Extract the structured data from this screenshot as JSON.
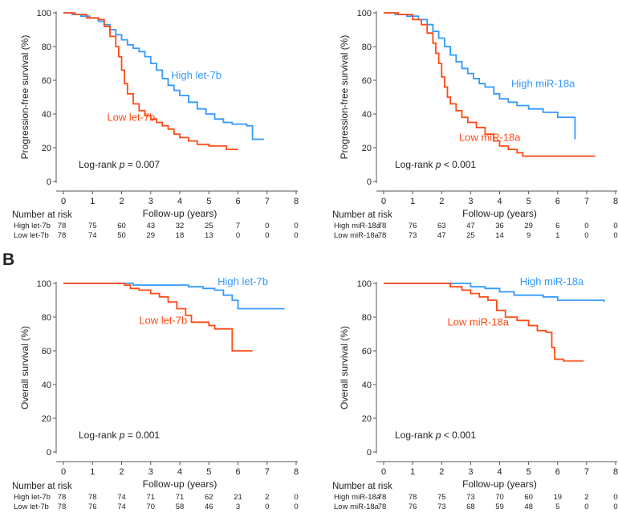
{
  "panel_label": "B",
  "colors": {
    "high": "#3399ff",
    "low": "#ff4a14",
    "axis": "#555555",
    "text": "#222222"
  },
  "chart_data": [
    {
      "type": "line",
      "ylabel": "Progression-free survival (%)",
      "xlabel": "Follow-up (years)",
      "xlim": [
        0,
        8
      ],
      "ylim": [
        0,
        100
      ],
      "xticks": [
        0,
        1,
        2,
        3,
        4,
        5,
        6,
        7,
        8
      ],
      "yticks": [
        0,
        20,
        40,
        60,
        80,
        100
      ],
      "grid": false,
      "annotation": {
        "prefix": "Log-rank ",
        "p": "p",
        "suffix": " = 0.007"
      },
      "risk_table": {
        "title": "Number at risk",
        "rows": [
          {
            "label": "High let-7b",
            "values": [
              78,
              75,
              60,
              43,
              32,
              25,
              7,
              0,
              0
            ]
          },
          {
            "label": "Low let-7b",
            "values": [
              78,
              74,
              50,
              29,
              18,
              13,
              0,
              0,
              0
            ]
          }
        ]
      },
      "series": [
        {
          "name": "High let-7b",
          "label_at": [
            3.7,
            61
          ],
          "color_key": "high",
          "points": [
            [
              0,
              100
            ],
            [
              0.3,
              99
            ],
            [
              0.6,
              98
            ],
            [
              0.9,
              97
            ],
            [
              1.2,
              95
            ],
            [
              1.4,
              93
            ],
            [
              1.6,
              90
            ],
            [
              1.8,
              87
            ],
            [
              2.0,
              84
            ],
            [
              2.2,
              81
            ],
            [
              2.4,
              79
            ],
            [
              2.6,
              77
            ],
            [
              2.8,
              74
            ],
            [
              3.0,
              70
            ],
            [
              3.2,
              66
            ],
            [
              3.4,
              61
            ],
            [
              3.6,
              57
            ],
            [
              3.8,
              54
            ],
            [
              4.0,
              51
            ],
            [
              4.3,
              47
            ],
            [
              4.6,
              43
            ],
            [
              4.9,
              40
            ],
            [
              5.2,
              37
            ],
            [
              5.5,
              35
            ],
            [
              5.8,
              34
            ],
            [
              6.3,
              33
            ],
            [
              6.5,
              25
            ],
            [
              6.9,
              25
            ]
          ]
        },
        {
          "name": "Low let-7b",
          "label_at": [
            1.5,
            36
          ],
          "color_key": "low",
          "points": [
            [
              0,
              100
            ],
            [
              0.4,
              99
            ],
            [
              0.8,
              97
            ],
            [
              1.2,
              96
            ],
            [
              1.4,
              92
            ],
            [
              1.6,
              86
            ],
            [
              1.8,
              80
            ],
            [
              1.9,
              74
            ],
            [
              2.0,
              66
            ],
            [
              2.1,
              58
            ],
            [
              2.2,
              52
            ],
            [
              2.4,
              46
            ],
            [
              2.6,
              42
            ],
            [
              2.8,
              39
            ],
            [
              3.0,
              37
            ],
            [
              3.2,
              35
            ],
            [
              3.4,
              33
            ],
            [
              3.6,
              31
            ],
            [
              3.8,
              28
            ],
            [
              4.0,
              26
            ],
            [
              4.3,
              24
            ],
            [
              4.6,
              22
            ],
            [
              5.0,
              21
            ],
            [
              5.6,
              19
            ],
            [
              6.0,
              19
            ]
          ]
        }
      ]
    },
    {
      "type": "line",
      "ylabel": "Progression-free survival (%)",
      "xlabel": "Follow-up (years)",
      "xlim": [
        0,
        8
      ],
      "ylim": [
        0,
        100
      ],
      "xticks": [
        0,
        1,
        2,
        3,
        4,
        5,
        6,
        7,
        8
      ],
      "yticks": [
        0,
        20,
        40,
        60,
        80,
        100
      ],
      "grid": false,
      "annotation": {
        "prefix": "Log-rank ",
        "p": "p",
        "suffix": " < 0.001"
      },
      "risk_table": {
        "title": "Number at risk",
        "rows": [
          {
            "label": "High miR-18a",
            "values": [
              78,
              76,
              63,
              47,
              36,
              29,
              6,
              0,
              0
            ]
          },
          {
            "label": "Low miR-18a",
            "values": [
              78,
              73,
              47,
              25,
              14,
              9,
              1,
              0,
              0
            ]
          }
        ]
      },
      "series": [
        {
          "name": "High miR-18a",
          "label_at": [
            4.4,
            56
          ],
          "color_key": "high",
          "points": [
            [
              0,
              100
            ],
            [
              0.4,
              99
            ],
            [
              0.8,
              98
            ],
            [
              1.2,
              96
            ],
            [
              1.5,
              93
            ],
            [
              1.7,
              89
            ],
            [
              1.9,
              85
            ],
            [
              2.1,
              80
            ],
            [
              2.3,
              75
            ],
            [
              2.5,
              71
            ],
            [
              2.7,
              67
            ],
            [
              2.9,
              64
            ],
            [
              3.1,
              61
            ],
            [
              3.3,
              58
            ],
            [
              3.5,
              56
            ],
            [
              3.8,
              52
            ],
            [
              4.0,
              49
            ],
            [
              4.3,
              47
            ],
            [
              4.6,
              45
            ],
            [
              5.0,
              43
            ],
            [
              5.5,
              41
            ],
            [
              6.0,
              38
            ],
            [
              6.5,
              38
            ],
            [
              6.6,
              25
            ]
          ]
        },
        {
          "name": "Low miR-18a",
          "label_at": [
            2.6,
            24
          ],
          "color_key": "low",
          "points": [
            [
              0,
              100
            ],
            [
              0.5,
              99
            ],
            [
              1.0,
              96
            ],
            [
              1.3,
              93
            ],
            [
              1.5,
              88
            ],
            [
              1.7,
              82
            ],
            [
              1.8,
              76
            ],
            [
              1.9,
              70
            ],
            [
              2.0,
              62
            ],
            [
              2.1,
              56
            ],
            [
              2.2,
              50
            ],
            [
              2.3,
              46
            ],
            [
              2.5,
              42
            ],
            [
              2.7,
              38
            ],
            [
              2.9,
              35
            ],
            [
              3.2,
              32
            ],
            [
              3.5,
              28
            ],
            [
              3.8,
              24
            ],
            [
              4.0,
              21
            ],
            [
              4.3,
              19
            ],
            [
              4.6,
              17
            ],
            [
              4.8,
              15
            ],
            [
              5.5,
              15
            ],
            [
              6.5,
              15
            ],
            [
              7.3,
              15
            ]
          ]
        }
      ]
    },
    {
      "type": "line",
      "ylabel": "Overall survival (%)",
      "xlabel": "Follow-up (years)",
      "xlim": [
        0,
        8
      ],
      "ylim": [
        0,
        100
      ],
      "xticks": [
        0,
        1,
        2,
        3,
        4,
        5,
        6,
        7,
        8
      ],
      "yticks": [
        0,
        20,
        40,
        60,
        80,
        100
      ],
      "grid": false,
      "annotation": {
        "prefix": "Log-rank ",
        "p": "p",
        "suffix": " = 0.001"
      },
      "risk_table": {
        "title": "Number at risk",
        "rows": [
          {
            "label": "High let-7b",
            "values": [
              78,
              78,
              74,
              71,
              71,
              62,
              21,
              2,
              0
            ]
          },
          {
            "label": "Low let-7b",
            "values": [
              78,
              76,
              74,
              70,
              58,
              46,
              3,
              0,
              0
            ]
          }
        ]
      },
      "series": [
        {
          "name": "High let-7b",
          "label_at": [
            5.3,
            99
          ],
          "color_key": "high",
          "points": [
            [
              0,
              100
            ],
            [
              1.5,
              100
            ],
            [
              2.2,
              100
            ],
            [
              2.4,
              99
            ],
            [
              3.0,
              99
            ],
            [
              3.5,
              99
            ],
            [
              4.0,
              99
            ],
            [
              4.3,
              98
            ],
            [
              4.8,
              97
            ],
            [
              5.2,
              96
            ],
            [
              5.5,
              93
            ],
            [
              5.8,
              90
            ],
            [
              6.0,
              85
            ],
            [
              6.6,
              85
            ],
            [
              7.6,
              85
            ]
          ]
        },
        {
          "name": "Low let-7b",
          "label_at": [
            2.6,
            76
          ],
          "color_key": "low",
          "points": [
            [
              0,
              100
            ],
            [
              1.8,
              100
            ],
            [
              2.1,
              99
            ],
            [
              2.3,
              97
            ],
            [
              2.6,
              96
            ],
            [
              3.0,
              94
            ],
            [
              3.3,
              92
            ],
            [
              3.6,
              89
            ],
            [
              3.9,
              85
            ],
            [
              4.2,
              81
            ],
            [
              4.4,
              77
            ],
            [
              4.8,
              77
            ],
            [
              5.0,
              75
            ],
            [
              5.2,
              73
            ],
            [
              5.5,
              73
            ],
            [
              5.7,
              73
            ],
            [
              5.8,
              60
            ],
            [
              6.0,
              60
            ],
            [
              6.5,
              60
            ]
          ]
        }
      ]
    },
    {
      "type": "line",
      "ylabel": "Overall survival (%)",
      "xlabel": "Follow-up (years)",
      "xlim": [
        0,
        8
      ],
      "ylim": [
        0,
        100
      ],
      "xticks": [
        0,
        1,
        2,
        3,
        4,
        5,
        6,
        7,
        8
      ],
      "yticks": [
        0,
        20,
        40,
        60,
        80,
        100
      ],
      "grid": false,
      "annotation": {
        "prefix": "Log-rank ",
        "p": "p",
        "suffix": " < 0.001"
      },
      "risk_table": {
        "title": "Number at risk",
        "rows": [
          {
            "label": "High miR-18a",
            "values": [
              78,
              78,
              75,
              73,
              70,
              60,
              19,
              2,
              0
            ]
          },
          {
            "label": "Low miR-18a",
            "values": [
              78,
              76,
              73,
              68,
              59,
              48,
              5,
              0,
              0
            ]
          }
        ]
      },
      "series": [
        {
          "name": "High miR-18a",
          "label_at": [
            4.7,
            99
          ],
          "color_key": "high",
          "points": [
            [
              0,
              100
            ],
            [
              2.0,
              100
            ],
            [
              2.8,
              100
            ],
            [
              3.0,
              98
            ],
            [
              3.5,
              97
            ],
            [
              4.0,
              95
            ],
            [
              4.5,
              93
            ],
            [
              5.0,
              93
            ],
            [
              5.5,
              92
            ],
            [
              6.0,
              90
            ],
            [
              6.5,
              90
            ],
            [
              7.6,
              89
            ]
          ]
        },
        {
          "name": "Low miR-18a",
          "label_at": [
            2.2,
            75
          ],
          "color_key": "low",
          "points": [
            [
              0,
              100
            ],
            [
              2.0,
              100
            ],
            [
              2.3,
              98
            ],
            [
              2.7,
              96
            ],
            [
              3.0,
              94
            ],
            [
              3.3,
              92
            ],
            [
              3.6,
              90
            ],
            [
              3.9,
              84
            ],
            [
              4.2,
              80
            ],
            [
              4.6,
              78
            ],
            [
              5.0,
              75
            ],
            [
              5.3,
              72
            ],
            [
              5.6,
              71
            ],
            [
              5.8,
              62
            ],
            [
              5.9,
              55
            ],
            [
              6.2,
              54
            ],
            [
              6.9,
              54
            ]
          ]
        }
      ]
    }
  ]
}
